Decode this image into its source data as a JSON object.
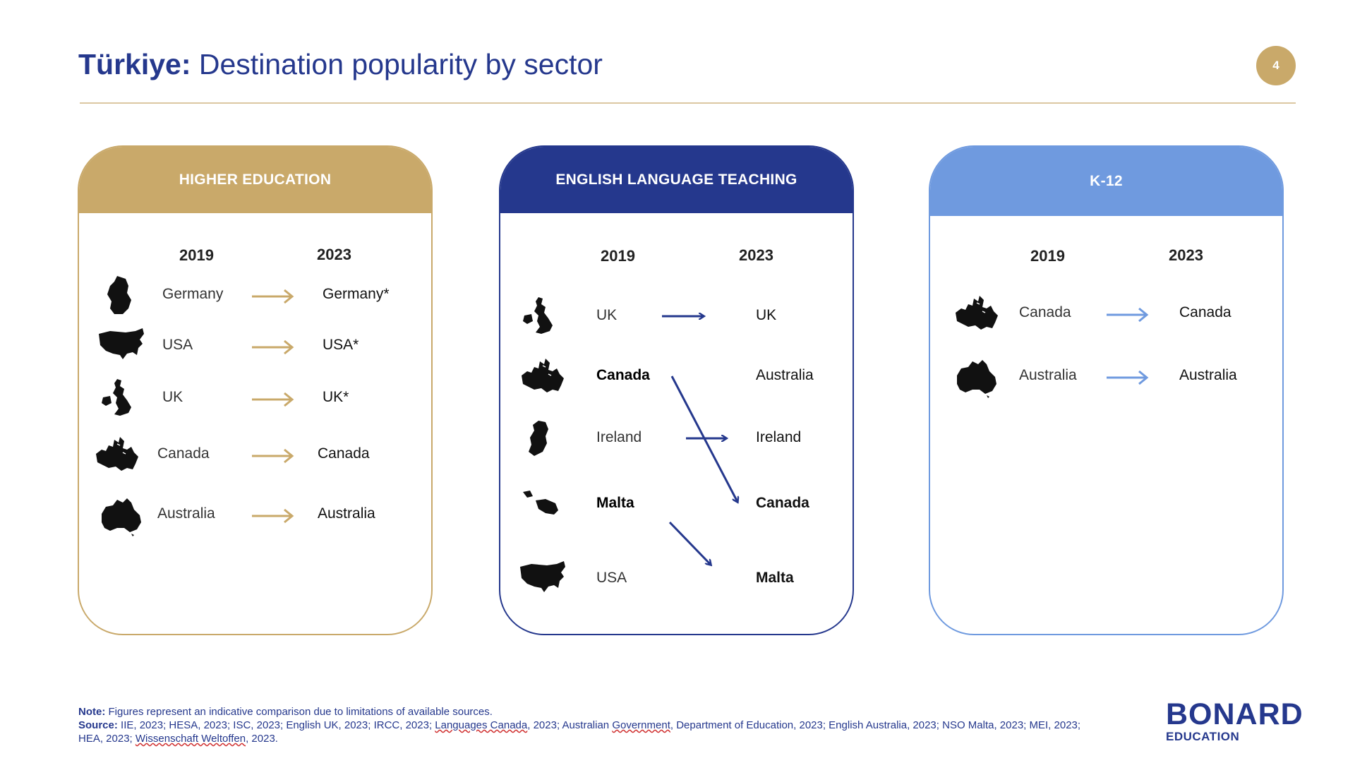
{
  "header": {
    "title_country": "Türkiye:",
    "title_rest": " Destination popularity by sector",
    "page_number": "4"
  },
  "colors": {
    "navy": "#25388d",
    "gold": "#c9a96a",
    "light_blue": "#6f9adf"
  },
  "panels": {
    "higher_education": {
      "title": "HIGHER EDUCATION",
      "year_from": "2019",
      "year_to": "2023",
      "rows": [
        {
          "icon": "germany-map-icon",
          "from": "Germany",
          "to": "Germany*"
        },
        {
          "icon": "usa-map-icon",
          "from": "USA",
          "to": "USA*"
        },
        {
          "icon": "uk-map-icon",
          "from": "UK",
          "to": "UK*"
        },
        {
          "icon": "canada-map-icon",
          "from": "Canada",
          "to": "Canada"
        },
        {
          "icon": "australia-map-icon",
          "from": "Australia",
          "to": "Australia"
        }
      ]
    },
    "english_language_teaching": {
      "title": "ENGLISH LANGUAGE TEACHING",
      "year_from": "2019",
      "year_to": "2023",
      "from": [
        "UK",
        "Canada",
        "Ireland",
        "Malta",
        "USA"
      ],
      "to": [
        "UK",
        "Australia",
        "Ireland",
        "Canada",
        "Malta"
      ],
      "icons": [
        "uk-map-icon",
        "canada-map-icon",
        "ireland-map-icon",
        "malta-map-icon",
        "usa-map-icon"
      ]
    },
    "k12": {
      "title": "K-12",
      "year_from": "2019",
      "year_to": "2023",
      "rows": [
        {
          "icon": "canada-map-icon",
          "from": "Canada",
          "to": "Canada"
        },
        {
          "icon": "australia-map-icon",
          "from": "Australia",
          "to": "Australia"
        }
      ]
    }
  },
  "footer": {
    "note_label": "Note:",
    "note_text": " Figures represent an indicative comparison due to limitations of available sources.",
    "source_label": "Source:",
    "source_text_1": " IIE, 2023; HESA, 2023; ISC, 2023; English UK, 2023; IRCC, 2023; ",
    "source_squig_1": "Languages Canada",
    "source_text_2": ", 2023; Australian ",
    "source_squig_2": "Government",
    "source_text_3": ", Department of Education, 2023; English Australia, 2023; NSO Malta, 2023; MEI, 2023;",
    "source_text_4": "HEA, 2023; ",
    "source_squig_3": "Wissenschaft Weltoffen",
    "source_text_5": ", 2023."
  },
  "logo": {
    "brand": "BONARD",
    "sub": "EDUCATION"
  }
}
